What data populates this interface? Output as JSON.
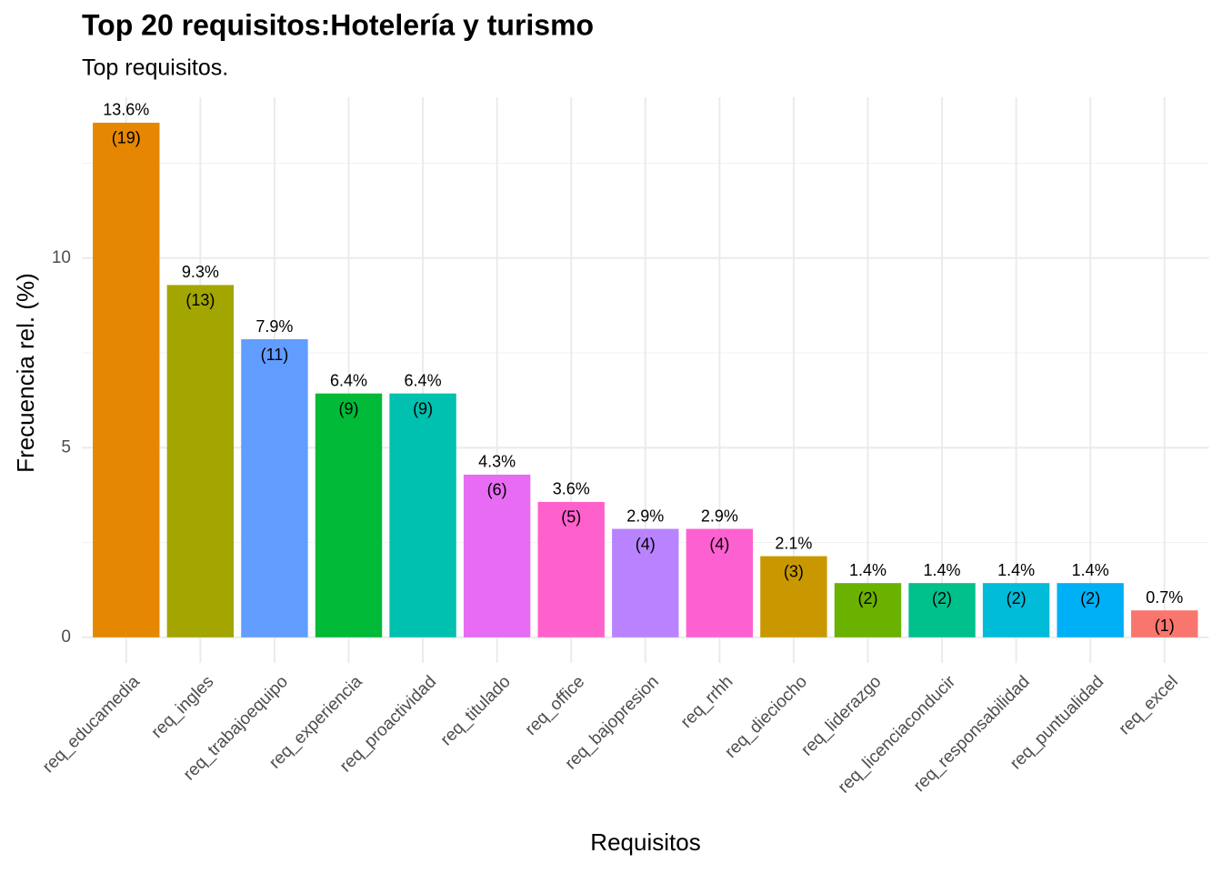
{
  "chart_data": {
    "type": "bar",
    "title": "Top 20 requisitos:Hotelería y turismo",
    "subtitle": "Top requisitos.",
    "x_label": "Requisitos",
    "y_label": "Frecuencia rel. (%)",
    "categories": [
      "req_educamedia",
      "req_ingles",
      "req_trabajoequipo",
      "req_experiencia",
      "req_proactividad",
      "req_titulado",
      "req_office",
      "req_bajopresion",
      "req_rrhh",
      "req_dieciocho",
      "req_liderazgo",
      "req_licenciaconducir",
      "req_responsabilidad",
      "req_puntualidad",
      "req_excel"
    ],
    "values": [
      13.57,
      9.29,
      7.86,
      6.43,
      6.43,
      4.29,
      3.57,
      2.86,
      2.86,
      2.14,
      1.43,
      1.43,
      1.43,
      1.43,
      0.71
    ],
    "value_labels": [
      "13.6%",
      "9.3%",
      "7.9%",
      "6.4%",
      "6.4%",
      "4.3%",
      "3.6%",
      "2.9%",
      "2.9%",
      "2.1%",
      "1.4%",
      "1.4%",
      "1.4%",
      "1.4%",
      "0.7%"
    ],
    "counts": [
      19,
      13,
      11,
      9,
      9,
      6,
      5,
      4,
      4,
      3,
      2,
      2,
      2,
      2,
      1
    ],
    "count_labels": [
      "(19)",
      "(13)",
      "(11)",
      "(9)",
      "(9)",
      "(6)",
      "(5)",
      "(4)",
      "(4)",
      "(3)",
      "(2)",
      "(2)",
      "(2)",
      "(2)",
      "(1)"
    ],
    "colors": [
      "#e58700",
      "#a3a500",
      "#619cff",
      "#00ba38",
      "#00c0af",
      "#e76bf3",
      "#ff61cc",
      "#b983ff",
      "#fd61d1",
      "#c99800",
      "#6bb100",
      "#00c08b",
      "#00bcd8",
      "#00b0f6",
      "#f8766d"
    ],
    "ylim": [
      -0.34,
      14.24
    ],
    "yticks": [
      0,
      5,
      10
    ],
    "yminorticks": [
      2.5,
      7.5,
      12.5
    ],
    "grid": true
  }
}
